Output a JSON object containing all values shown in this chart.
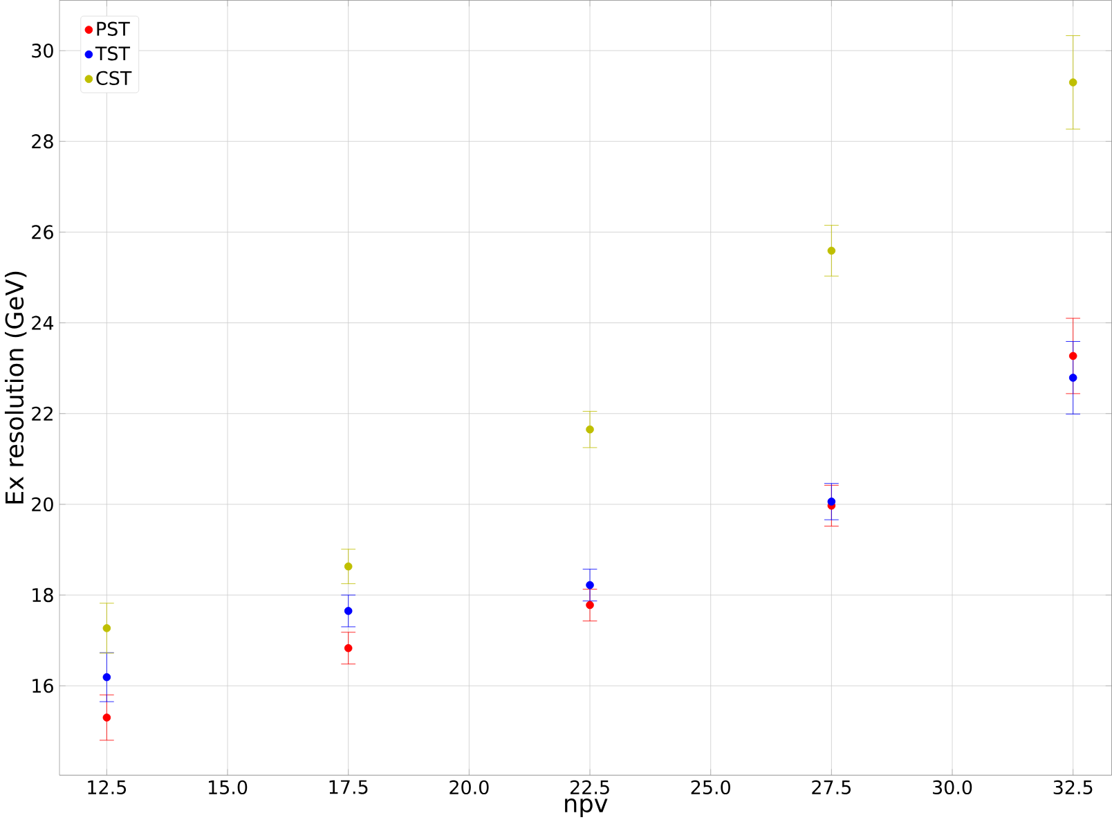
{
  "chart_data": {
    "type": "scatter",
    "xlabel": "npv",
    "ylabel": "Ex resolution (GeV)",
    "x": [
      12.5,
      17.5,
      22.5,
      27.5,
      32.5
    ],
    "series": [
      {
        "name": "PST",
        "color": "#ff0000",
        "values": [
          15.3,
          16.83,
          17.78,
          19.97,
          23.27
        ],
        "errors": [
          0.5,
          0.35,
          0.35,
          0.45,
          0.83
        ]
      },
      {
        "name": "TST",
        "color": "#0000ff",
        "values": [
          16.19,
          17.65,
          18.22,
          20.06,
          22.79
        ],
        "errors": [
          0.54,
          0.35,
          0.35,
          0.4,
          0.8
        ]
      },
      {
        "name": "CST",
        "color": "#bfbf00",
        "values": [
          17.27,
          18.63,
          21.65,
          25.59,
          29.3
        ],
        "errors": [
          0.55,
          0.38,
          0.4,
          0.56,
          1.03
        ]
      }
    ],
    "xlim": [
      11.52,
      33.3
    ],
    "ylim": [
      14.03,
      31.11
    ],
    "xticks": [
      {
        "value": 12.5,
        "label": "12.5"
      },
      {
        "value": 15,
        "label": "15.0"
      },
      {
        "value": 17.5,
        "label": "17.5"
      },
      {
        "value": 20,
        "label": "20.0"
      },
      {
        "value": 22.5,
        "label": "22.5"
      },
      {
        "value": 25,
        "label": "25.0"
      },
      {
        "value": 27.5,
        "label": "27.5"
      },
      {
        "value": 30,
        "label": "30.0"
      },
      {
        "value": 32.5,
        "label": "32.5"
      }
    ],
    "yticks": [
      16,
      18,
      20,
      22,
      24,
      26,
      28,
      30
    ],
    "grid": true,
    "legend": "top left",
    "marker": "circle"
  }
}
